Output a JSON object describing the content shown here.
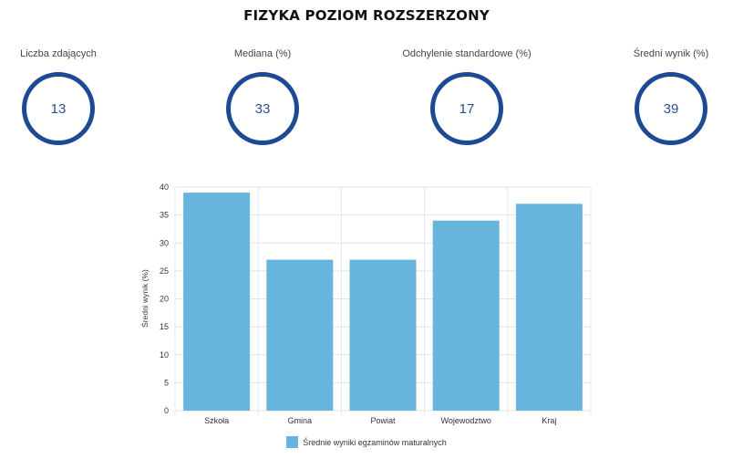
{
  "page": {
    "title": "FIZYKA POZIOM ROZSZERZONY"
  },
  "stats": [
    {
      "label": "Liczba zdających",
      "value": "13"
    },
    {
      "label": "Mediana (%)",
      "value": "33"
    },
    {
      "label": "Odchylenie standardowe (%)",
      "value": "17"
    },
    {
      "label": "Średni wynik (%)",
      "value": "39"
    }
  ],
  "colors": {
    "ring": "#1e4a94",
    "bar": "#67b4dc",
    "grid": "#e4e4e4"
  },
  "chart_data": {
    "type": "bar",
    "categories": [
      "Szkoła",
      "Gmina",
      "Powiat",
      "Wojewodztwo",
      "Kraj"
    ],
    "series": [
      {
        "name": "Średnie wyniki egzaminów maturalnych",
        "values": [
          39,
          27,
          27,
          34,
          37
        ]
      }
    ],
    "ylabel": "Średni wynik (%)",
    "xlabel": "",
    "ylim": [
      0,
      40
    ],
    "yticks": [
      0,
      5,
      10,
      15,
      20,
      25,
      30,
      35,
      40
    ],
    "grid": true,
    "legend": "bottom"
  }
}
